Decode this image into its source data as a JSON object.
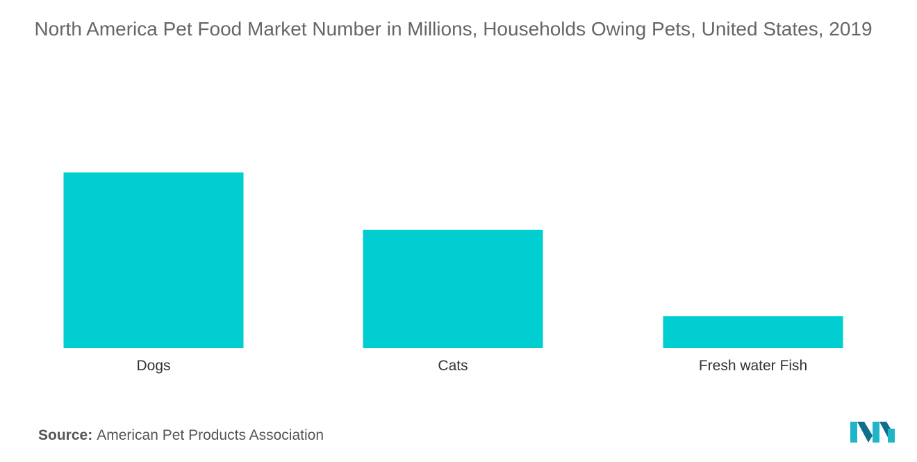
{
  "chart_data": {
    "type": "bar",
    "title": "North America Pet Food Market Number in Millions, Households Owing Pets, United States, 2019",
    "categories": [
      "Dogs",
      "Cats",
      "Fresh water Fish"
    ],
    "values": [
      63.4,
      42.7,
      11.5
    ],
    "ylim": [
      0,
      70
    ],
    "grid": false,
    "bar_color": "#00CED1"
  },
  "source": {
    "label": "Source:",
    "text": "American Pet Products Association"
  },
  "logo": {
    "icon": "mordor-intelligence-logo-icon",
    "colors": [
      "#1FB5C9",
      "#0E6E8C"
    ]
  }
}
